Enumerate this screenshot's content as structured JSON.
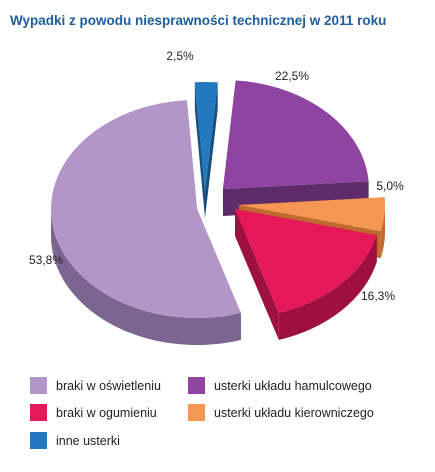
{
  "chart_data": {
    "type": "pie",
    "title": "Wypadki z powodu niesprawności technicznej w 2011 roku",
    "style": "exploded-3d",
    "slices": [
      {
        "name": "usterki układu hamulcowego",
        "value": 22.5,
        "label": "22,5%",
        "color": "#8e44a0",
        "side_color": "#5e2c6b"
      },
      {
        "name": "usterki układu kierowniczego",
        "value": 5.0,
        "label": "5,0%",
        "color": "#f39752",
        "side_color": "#c06a30"
      },
      {
        "name": "braki w ogumieniu",
        "value": 16.3,
        "label": "16,3%",
        "color": "#e5195a",
        "side_color": "#9e1040"
      },
      {
        "name": "braki w oświetleniu",
        "value": 53.8,
        "label": "53,8%",
        "color": "#b396c8",
        "side_color": "#7c6591"
      },
      {
        "name": "inne usterki",
        "value": 2.5,
        "label": "2,5%",
        "color": "#2378be",
        "side_color": "#164f80"
      }
    ],
    "legend": {
      "placement": "bottom",
      "columns": [
        [
          "braki w oświetleniu",
          "braki w ogumieniu",
          "inne usterki"
        ],
        [
          "usterki układu hamulcowego",
          "usterki układu kierowniczego"
        ]
      ]
    }
  }
}
